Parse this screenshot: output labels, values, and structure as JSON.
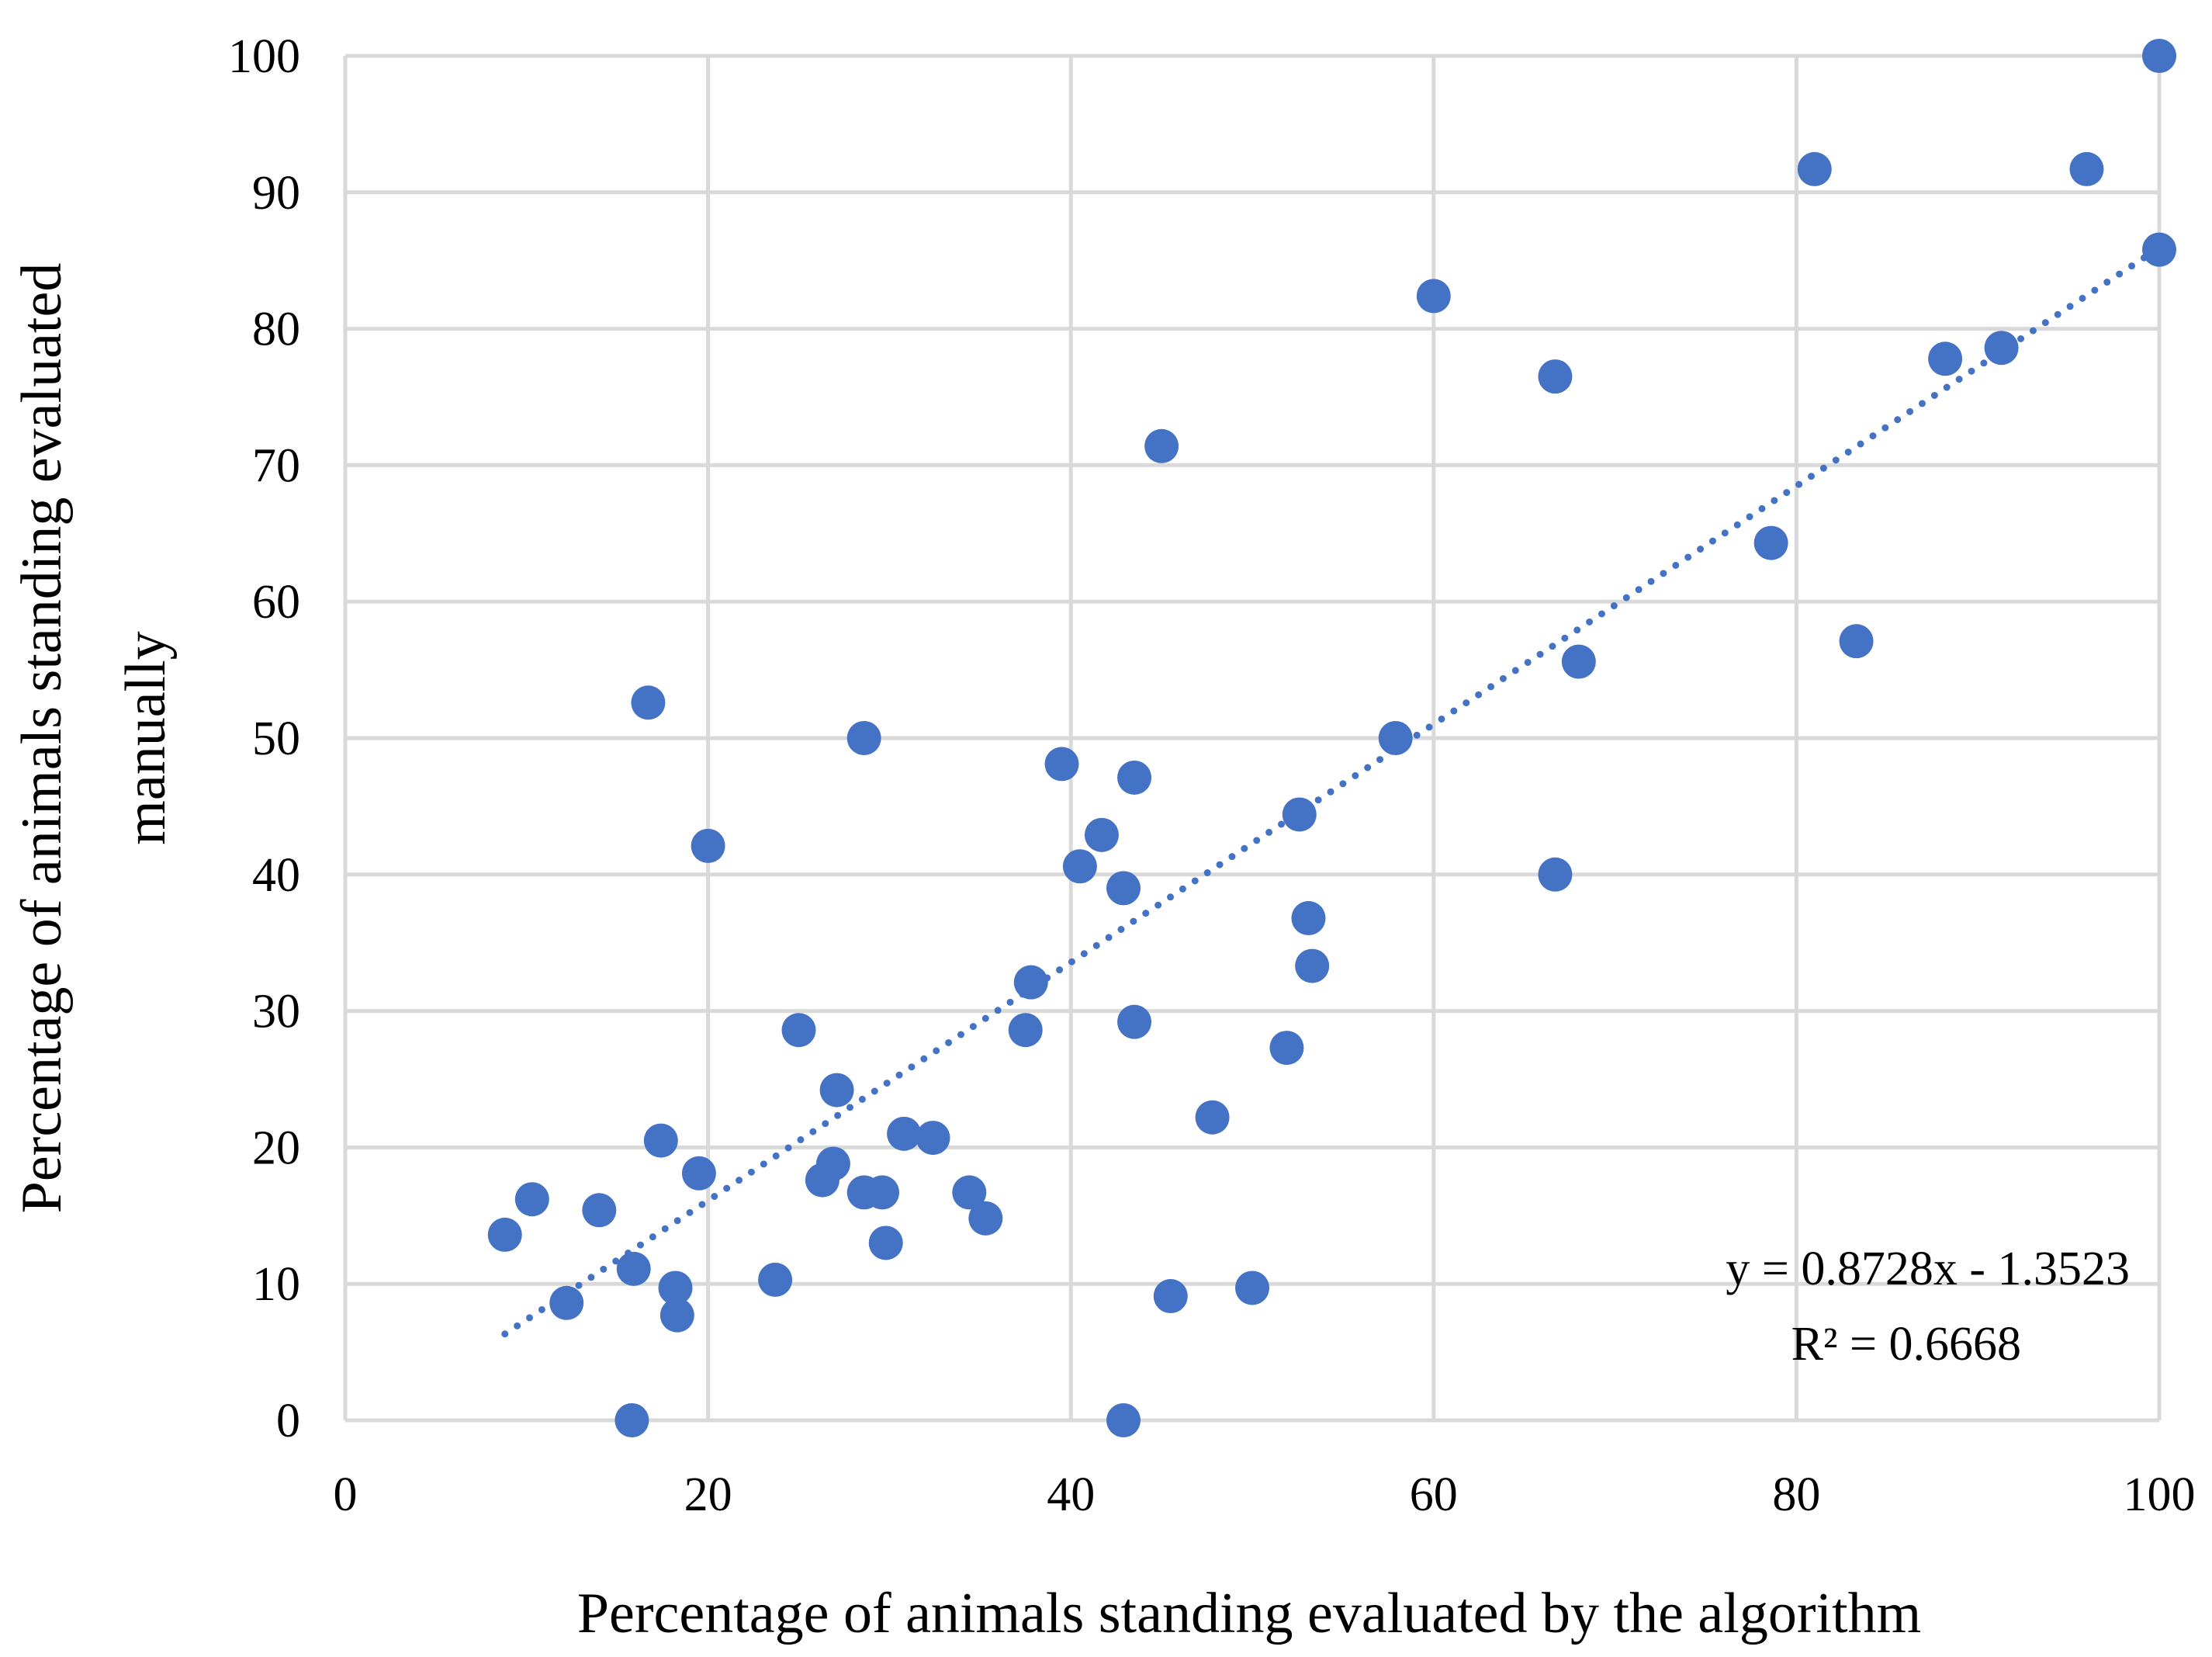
{
  "chart_data": {
    "type": "scatter",
    "title": "",
    "xlabel": "Percentage of animals standing evaluated by the algorithm",
    "ylabel_lines": [
      "Percentage of animals standing evaluated",
      "manually"
    ],
    "xlim": [
      0,
      100
    ],
    "ylim": [
      0,
      100
    ],
    "x_ticks": [
      0,
      20,
      40,
      60,
      80,
      100
    ],
    "y_ticks": [
      0,
      10,
      20,
      30,
      40,
      50,
      60,
      70,
      80,
      90,
      100
    ],
    "x_tick_labels": [
      "0",
      "20",
      "40",
      "60",
      "80",
      "100"
    ],
    "y_tick_labels": [
      "0",
      "10",
      "20",
      "30",
      "40",
      "50",
      "60",
      "70",
      "80",
      "90",
      "100"
    ],
    "grid": true,
    "marker_color": "#4472c4",
    "trendline_color": "#4472c4",
    "points": [
      [
        100,
        100
      ],
      [
        81,
        91.7
      ],
      [
        96,
        91.7
      ],
      [
        100,
        85.8
      ],
      [
        60,
        82.4
      ],
      [
        66.7,
        76.5
      ],
      [
        88.2,
        77.8
      ],
      [
        91.3,
        78.6
      ],
      [
        45,
        71.4
      ],
      [
        78.6,
        64.3
      ],
      [
        83.3,
        57.1
      ],
      [
        68,
        55.6
      ],
      [
        16.7,
        52.6
      ],
      [
        28.6,
        50
      ],
      [
        57.9,
        50
      ],
      [
        39.5,
        48.1
      ],
      [
        43.5,
        47.1
      ],
      [
        52.6,
        44.4
      ],
      [
        20,
        42.1
      ],
      [
        41.7,
        42.9
      ],
      [
        40.5,
        40.6
      ],
      [
        42.9,
        39
      ],
      [
        66.7,
        40
      ],
      [
        53.1,
        36.8
      ],
      [
        53.3,
        33.3
      ],
      [
        37.8,
        32.1
      ],
      [
        25,
        28.6
      ],
      [
        37.5,
        28.6
      ],
      [
        43.5,
        29.2
      ],
      [
        51.9,
        27.3
      ],
      [
        27.1,
        24.2
      ],
      [
        47.8,
        22.2
      ],
      [
        17.4,
        20.5
      ],
      [
        30.8,
        21
      ],
      [
        32.4,
        20.7
      ],
      [
        19.5,
        18.1
      ],
      [
        26.9,
        18.8
      ],
      [
        26.3,
        17.6
      ],
      [
        10.3,
        16.2
      ],
      [
        14,
        15.4
      ],
      [
        28.6,
        16.7
      ],
      [
        29.6,
        16.7
      ],
      [
        34.4,
        16.7
      ],
      [
        35.3,
        14.8
      ],
      [
        8.8,
        13.6
      ],
      [
        29.8,
        13
      ],
      [
        15.9,
        11.1
      ],
      [
        23.7,
        10.3
      ],
      [
        18.2,
        9.7
      ],
      [
        12.2,
        8.6
      ],
      [
        45.5,
        9.1
      ],
      [
        50,
        9.7
      ],
      [
        18.3,
        7.7
      ],
      [
        15.8,
        0
      ],
      [
        42.9,
        0
      ]
    ],
    "trendline": {
      "type": "linear",
      "slope": 0.8728,
      "intercept": -1.3523,
      "x_range": [
        8.8,
        100
      ],
      "style": "dotted"
    },
    "annotations": {
      "equation": "y = 0.8728x - 1.3523",
      "r_squared": "R² = 0.6668"
    }
  }
}
